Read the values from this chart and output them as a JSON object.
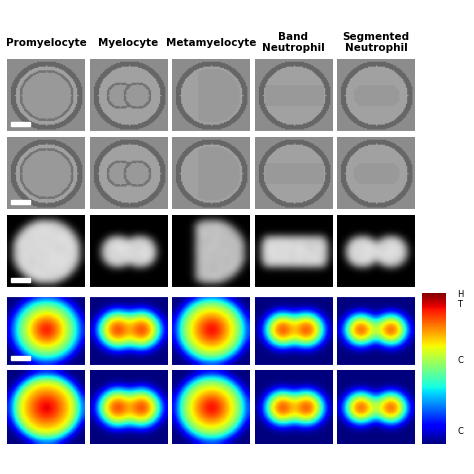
{
  "columns": [
    "Promyelocyte",
    "Myelocyte",
    "Metamyelocyte",
    "Band\nNeutrophil",
    "Segmented\nNeutrophil"
  ],
  "n_cols": 5,
  "n_rows": 5,
  "title_fontsize": 9,
  "background_color": "#ffffff",
  "gray_bg": 0.55,
  "black_bg": 0.0,
  "colorbar_labels": [
    "H",
    "T",
    "",
    "C",
    "",
    "C"
  ],
  "scale_bar_color": "#ffffff",
  "colormap_row4": "jet",
  "colormap_row5": "jet",
  "fig_width": 4.74,
  "fig_height": 4.74,
  "dpi": 100
}
